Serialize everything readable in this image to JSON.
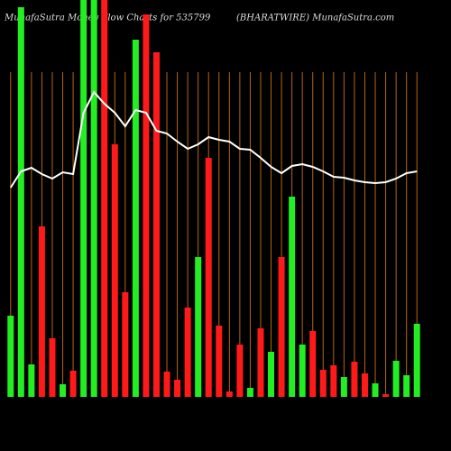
{
  "chart_data": {
    "type": "bar",
    "title": "MunafaSutra  Money Flow Charts for 535799",
    "subtitle": "(BHARATWIRE) MunafaSutra.com",
    "categories": [
      null,
      null,
      null,
      null,
      null,
      null,
      null,
      null,
      null,
      null,
      null,
      null,
      null,
      null,
      null,
      null,
      null,
      null,
      null,
      null,
      null,
      null,
      null,
      null,
      null,
      null,
      null,
      null,
      null,
      null,
      null,
      null,
      null,
      null,
      null,
      null,
      null,
      null,
      null,
      null
    ],
    "values": [
      90,
      432,
      36,
      189,
      65,
      14,
      29,
      460,
      460,
      460,
      280,
      116,
      396,
      424,
      382,
      28,
      19,
      99,
      155,
      265,
      79,
      6,
      58,
      10,
      76,
      50,
      155,
      222,
      58,
      73,
      30,
      35,
      22,
      39,
      26,
      15,
      3,
      40,
      24,
      81
    ],
    "colors": [
      "#22ee22",
      "#22ee22",
      "#22ee22",
      "#ff1a1a",
      "#ff1a1a",
      "#22ee22",
      "#ff1a1a",
      "#22ee22",
      "#22ee22",
      "#ff1a1a",
      "#ff1a1a",
      "#ff1a1a",
      "#22ee22",
      "#ff1a1a",
      "#ff1a1a",
      "#ff1a1a",
      "#ff1a1a",
      "#ff1a1a",
      "#22ee22",
      "#ff1a1a",
      "#ff1a1a",
      "#ff1a1a",
      "#ff1a1a",
      "#22ee22",
      "#ff1a1a",
      "#22ee22",
      "#ff1a1a",
      "#22ee22",
      "#22ee22",
      "#ff1a1a",
      "#ff1a1a",
      "#ff1a1a",
      "#22ee22",
      "#ff1a1a",
      "#ff1a1a",
      "#22ee22",
      "#ff1a1a",
      "#22ee22",
      "#22ee22",
      "#22ee22"
    ],
    "line": {
      "color": "#ffffff",
      "values": [
        232,
        250,
        254,
        247,
        242,
        249,
        247,
        315,
        338,
        325,
        315,
        300,
        318,
        315,
        295,
        292,
        283,
        275,
        280,
        288,
        285,
        283,
        275,
        274,
        265,
        255,
        248,
        256,
        258,
        255,
        250,
        244,
        243,
        240,
        238,
        237,
        238,
        242,
        248,
        250
      ]
    },
    "ylim": [
      0,
      440
    ],
    "grid": true,
    "grid_color": "#b8650f"
  }
}
